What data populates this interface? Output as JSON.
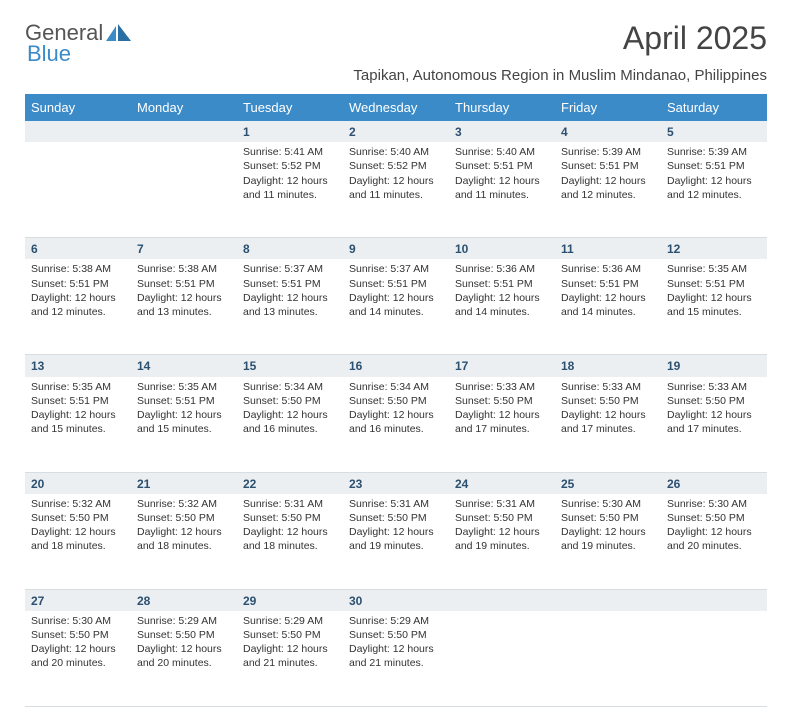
{
  "logo": {
    "text1": "General",
    "text2": "Blue"
  },
  "title": "April 2025",
  "location": "Tapikan, Autonomous Region in Muslim Mindanao, Philippines",
  "colors": {
    "header_bg": "#3b8bc9",
    "header_text": "#ffffff",
    "daynum_bg": "#eceff2",
    "daynum_text": "#2b5070",
    "cell_border": "#d8dde2",
    "body_text": "#333333"
  },
  "weekdays": [
    "Sunday",
    "Monday",
    "Tuesday",
    "Wednesday",
    "Thursday",
    "Friday",
    "Saturday"
  ],
  "weeks": [
    {
      "nums": [
        "",
        "",
        "1",
        "2",
        "3",
        "4",
        "5"
      ],
      "cells": [
        null,
        null,
        {
          "sr": "5:41 AM",
          "ss": "5:52 PM",
          "dl": "12 hours and 11 minutes."
        },
        {
          "sr": "5:40 AM",
          "ss": "5:52 PM",
          "dl": "12 hours and 11 minutes."
        },
        {
          "sr": "5:40 AM",
          "ss": "5:51 PM",
          "dl": "12 hours and 11 minutes."
        },
        {
          "sr": "5:39 AM",
          "ss": "5:51 PM",
          "dl": "12 hours and 12 minutes."
        },
        {
          "sr": "5:39 AM",
          "ss": "5:51 PM",
          "dl": "12 hours and 12 minutes."
        }
      ]
    },
    {
      "nums": [
        "6",
        "7",
        "8",
        "9",
        "10",
        "11",
        "12"
      ],
      "cells": [
        {
          "sr": "5:38 AM",
          "ss": "5:51 PM",
          "dl": "12 hours and 12 minutes."
        },
        {
          "sr": "5:38 AM",
          "ss": "5:51 PM",
          "dl": "12 hours and 13 minutes."
        },
        {
          "sr": "5:37 AM",
          "ss": "5:51 PM",
          "dl": "12 hours and 13 minutes."
        },
        {
          "sr": "5:37 AM",
          "ss": "5:51 PM",
          "dl": "12 hours and 14 minutes."
        },
        {
          "sr": "5:36 AM",
          "ss": "5:51 PM",
          "dl": "12 hours and 14 minutes."
        },
        {
          "sr": "5:36 AM",
          "ss": "5:51 PM",
          "dl": "12 hours and 14 minutes."
        },
        {
          "sr": "5:35 AM",
          "ss": "5:51 PM",
          "dl": "12 hours and 15 minutes."
        }
      ]
    },
    {
      "nums": [
        "13",
        "14",
        "15",
        "16",
        "17",
        "18",
        "19"
      ],
      "cells": [
        {
          "sr": "5:35 AM",
          "ss": "5:51 PM",
          "dl": "12 hours and 15 minutes."
        },
        {
          "sr": "5:35 AM",
          "ss": "5:51 PM",
          "dl": "12 hours and 15 minutes."
        },
        {
          "sr": "5:34 AM",
          "ss": "5:50 PM",
          "dl": "12 hours and 16 minutes."
        },
        {
          "sr": "5:34 AM",
          "ss": "5:50 PM",
          "dl": "12 hours and 16 minutes."
        },
        {
          "sr": "5:33 AM",
          "ss": "5:50 PM",
          "dl": "12 hours and 17 minutes."
        },
        {
          "sr": "5:33 AM",
          "ss": "5:50 PM",
          "dl": "12 hours and 17 minutes."
        },
        {
          "sr": "5:33 AM",
          "ss": "5:50 PM",
          "dl": "12 hours and 17 minutes."
        }
      ]
    },
    {
      "nums": [
        "20",
        "21",
        "22",
        "23",
        "24",
        "25",
        "26"
      ],
      "cells": [
        {
          "sr": "5:32 AM",
          "ss": "5:50 PM",
          "dl": "12 hours and 18 minutes."
        },
        {
          "sr": "5:32 AM",
          "ss": "5:50 PM",
          "dl": "12 hours and 18 minutes."
        },
        {
          "sr": "5:31 AM",
          "ss": "5:50 PM",
          "dl": "12 hours and 18 minutes."
        },
        {
          "sr": "5:31 AM",
          "ss": "5:50 PM",
          "dl": "12 hours and 19 minutes."
        },
        {
          "sr": "5:31 AM",
          "ss": "5:50 PM",
          "dl": "12 hours and 19 minutes."
        },
        {
          "sr": "5:30 AM",
          "ss": "5:50 PM",
          "dl": "12 hours and 19 minutes."
        },
        {
          "sr": "5:30 AM",
          "ss": "5:50 PM",
          "dl": "12 hours and 20 minutes."
        }
      ]
    },
    {
      "nums": [
        "27",
        "28",
        "29",
        "30",
        "",
        "",
        ""
      ],
      "cells": [
        {
          "sr": "5:30 AM",
          "ss": "5:50 PM",
          "dl": "12 hours and 20 minutes."
        },
        {
          "sr": "5:29 AM",
          "ss": "5:50 PM",
          "dl": "12 hours and 20 minutes."
        },
        {
          "sr": "5:29 AM",
          "ss": "5:50 PM",
          "dl": "12 hours and 21 minutes."
        },
        {
          "sr": "5:29 AM",
          "ss": "5:50 PM",
          "dl": "12 hours and 21 minutes."
        },
        null,
        null,
        null
      ]
    }
  ],
  "labels": {
    "sunrise": "Sunrise: ",
    "sunset": "Sunset: ",
    "daylight": "Daylight: "
  }
}
